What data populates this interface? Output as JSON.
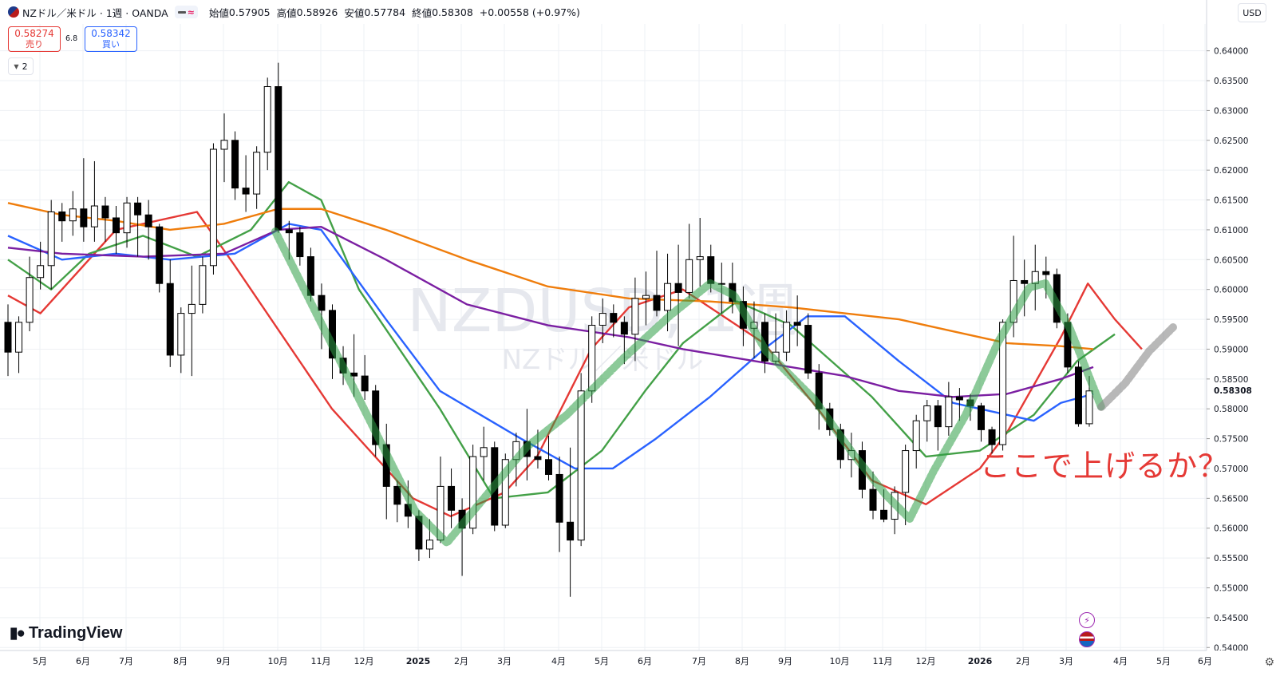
{
  "header": {
    "title": "NZドル／米ドル · 1週 · OANDA",
    "approx_symbol": "≈",
    "open_label": "始値",
    "open": "0.57905",
    "high_label": "高値",
    "high": "0.58926",
    "low_label": "安値",
    "low": "0.57784",
    "close_label": "終値",
    "close": "0.58308",
    "change": "+0.00558 (+0.97%)"
  },
  "trade": {
    "sell_price": "0.58274",
    "sell_label": "売り",
    "spread": "6.8",
    "buy_price": "0.58342",
    "buy_label": "買い"
  },
  "indicators_toggle": {
    "count": "2",
    "icon": "chevron-down-icon"
  },
  "currency_button": "USD",
  "watermark": {
    "symbol": "NZDUSD, 1週",
    "name": "NZドル／米ドル"
  },
  "logo": {
    "text": "TradingView",
    "icon": "tradingview-logo-icon"
  },
  "annotation": "ここで上げるか？",
  "last_price_label": "0.58308",
  "colors": {
    "up_candle": "#ffffff",
    "down_candle": "#000000",
    "sma_red": "#e53935",
    "sma_green": "#43a047",
    "sma_blue": "#2962ff",
    "sma_purple": "#7b1fa2",
    "sma_orange": "#ef7d0c",
    "annotation": "#e53935",
    "grid": "#eef0f4"
  },
  "chart_data": {
    "type": "candlestick",
    "ylim": [
      0.5395,
      0.6445
    ],
    "y_ticks": [
      "0.54000",
      "0.54500",
      "0.55000",
      "0.55500",
      "0.56000",
      "0.56500",
      "0.57000",
      "0.57500",
      "0.58000",
      "0.58500",
      "0.59000",
      "0.59500",
      "0.60000",
      "0.60500",
      "0.61000",
      "0.61500",
      "0.62000",
      "0.62500",
      "0.63000",
      "0.63500",
      "0.64000"
    ],
    "x_ticks": [
      "5月",
      "6月",
      "7月",
      "8月",
      "9月",
      "10月",
      "11月",
      "12月",
      "2025",
      "2月",
      "3月",
      "4月",
      "5月",
      "6月",
      "7月",
      "8月",
      "9月",
      "10月",
      "11月",
      "12月",
      "2026",
      "2月",
      "3月",
      "4月",
      "5月",
      "6月"
    ],
    "candles": [
      [
        0.5945,
        0.5895,
        0.5975,
        0.5855
      ],
      [
        0.5895,
        0.5945,
        0.5955,
        0.586
      ],
      [
        0.5945,
        0.602,
        0.6055,
        0.593
      ],
      [
        0.602,
        0.604,
        0.608,
        0.6
      ],
      [
        0.604,
        0.613,
        0.615,
        0.6
      ],
      [
        0.613,
        0.6115,
        0.6145,
        0.608
      ],
      [
        0.6115,
        0.6135,
        0.6165,
        0.609
      ],
      [
        0.6135,
        0.6105,
        0.622,
        0.608
      ],
      [
        0.6105,
        0.614,
        0.6215,
        0.608
      ],
      [
        0.614,
        0.612,
        0.6155,
        0.608
      ],
      [
        0.612,
        0.6095,
        0.614,
        0.606
      ],
      [
        0.6095,
        0.6145,
        0.6155,
        0.607
      ],
      [
        0.6145,
        0.6125,
        0.6155,
        0.6055
      ],
      [
        0.6125,
        0.6105,
        0.615,
        0.605
      ],
      [
        0.6105,
        0.601,
        0.611,
        0.5995
      ],
      [
        0.601,
        0.589,
        0.605,
        0.587
      ],
      [
        0.589,
        0.596,
        0.597,
        0.586
      ],
      [
        0.596,
        0.5975,
        0.604,
        0.5855
      ],
      [
        0.5975,
        0.604,
        0.6055,
        0.596
      ],
      [
        0.604,
        0.6235,
        0.6245,
        0.6025
      ],
      [
        0.6235,
        0.625,
        0.6295,
        0.618
      ],
      [
        0.625,
        0.617,
        0.6265,
        0.615
      ],
      [
        0.617,
        0.616,
        0.6225,
        0.613
      ],
      [
        0.616,
        0.623,
        0.624,
        0.6135
      ],
      [
        0.623,
        0.634,
        0.6355,
        0.62
      ],
      [
        0.634,
        0.61,
        0.638,
        0.6095
      ],
      [
        0.61,
        0.6095,
        0.6115,
        0.605
      ],
      [
        0.6095,
        0.6055,
        0.6105,
        0.604
      ],
      [
        0.6055,
        0.599,
        0.607,
        0.598
      ],
      [
        0.599,
        0.5965,
        0.601,
        0.59
      ],
      [
        0.5965,
        0.5885,
        0.5975,
        0.585
      ],
      [
        0.5885,
        0.586,
        0.5905,
        0.584
      ],
      [
        0.586,
        0.5855,
        0.5925,
        0.582
      ],
      [
        0.5855,
        0.583,
        0.589,
        0.5815
      ],
      [
        0.583,
        0.574,
        0.584,
        0.572
      ],
      [
        0.574,
        0.567,
        0.5775,
        0.5615
      ],
      [
        0.567,
        0.564,
        0.568,
        0.561
      ],
      [
        0.564,
        0.562,
        0.568,
        0.56
      ],
      [
        0.562,
        0.5565,
        0.563,
        0.5545
      ],
      [
        0.5565,
        0.558,
        0.5615,
        0.555
      ],
      [
        0.558,
        0.567,
        0.572,
        0.5575
      ],
      [
        0.567,
        0.563,
        0.57,
        0.56
      ],
      [
        0.563,
        0.56,
        0.565,
        0.552
      ],
      [
        0.56,
        0.572,
        0.574,
        0.559
      ],
      [
        0.572,
        0.5735,
        0.577,
        0.568
      ],
      [
        0.5735,
        0.5605,
        0.5745,
        0.5595
      ],
      [
        0.5605,
        0.5715,
        0.5725,
        0.56
      ],
      [
        0.5715,
        0.5745,
        0.576,
        0.567
      ],
      [
        0.5745,
        0.572,
        0.58,
        0.568
      ],
      [
        0.572,
        0.5715,
        0.5765,
        0.57
      ],
      [
        0.5715,
        0.569,
        0.5755,
        0.568
      ],
      [
        0.569,
        0.561,
        0.572,
        0.556
      ],
      [
        0.561,
        0.558,
        0.5735,
        0.5485
      ],
      [
        0.558,
        0.583,
        0.586,
        0.557
      ],
      [
        0.583,
        0.594,
        0.5955,
        0.581
      ],
      [
        0.594,
        0.596,
        0.5985,
        0.591
      ],
      [
        0.596,
        0.5945,
        0.5975,
        0.592
      ],
      [
        0.5945,
        0.5925,
        0.5955,
        0.5875
      ],
      [
        0.5925,
        0.5985,
        0.602,
        0.588
      ],
      [
        0.5985,
        0.599,
        0.603,
        0.594
      ],
      [
        0.599,
        0.5965,
        0.6065,
        0.5955
      ],
      [
        0.5965,
        0.601,
        0.606,
        0.593
      ],
      [
        0.601,
        0.5995,
        0.6075,
        0.5905
      ],
      [
        0.5995,
        0.605,
        0.611,
        0.5985
      ],
      [
        0.605,
        0.6055,
        0.612,
        0.6005
      ],
      [
        0.6055,
        0.601,
        0.6075,
        0.5995
      ],
      [
        0.601,
        0.601,
        0.6045,
        0.596
      ],
      [
        0.601,
        0.598,
        0.6045,
        0.596
      ],
      [
        0.598,
        0.5935,
        0.6005,
        0.5905
      ],
      [
        0.5935,
        0.5945,
        0.598,
        0.5885
      ],
      [
        0.5945,
        0.588,
        0.596,
        0.586
      ],
      [
        0.588,
        0.5895,
        0.596,
        0.5875
      ],
      [
        0.5895,
        0.5945,
        0.5965,
        0.588
      ],
      [
        0.5945,
        0.594,
        0.599,
        0.5905
      ],
      [
        0.594,
        0.586,
        0.596,
        0.585
      ],
      [
        0.586,
        0.58,
        0.5875,
        0.5765
      ],
      [
        0.58,
        0.5765,
        0.581,
        0.5755
      ],
      [
        0.5765,
        0.5715,
        0.5775,
        0.57
      ],
      [
        0.5715,
        0.573,
        0.576,
        0.5685
      ],
      [
        0.573,
        0.5665,
        0.5745,
        0.565
      ],
      [
        0.5665,
        0.563,
        0.5695,
        0.5615
      ],
      [
        0.563,
        0.5615,
        0.5665,
        0.561
      ],
      [
        0.5615,
        0.566,
        0.567,
        0.559
      ],
      [
        0.566,
        0.573,
        0.574,
        0.5605
      ],
      [
        0.573,
        0.578,
        0.579,
        0.57
      ],
      [
        0.578,
        0.5805,
        0.5815,
        0.5745
      ],
      [
        0.5805,
        0.577,
        0.5815,
        0.573
      ],
      [
        0.577,
        0.582,
        0.5845,
        0.5755
      ],
      [
        0.582,
        0.5815,
        0.5835,
        0.578
      ],
      [
        0.5815,
        0.5805,
        0.5825,
        0.578
      ],
      [
        0.5805,
        0.5765,
        0.581,
        0.5745
      ],
      [
        0.5765,
        0.574,
        0.577,
        0.5725
      ],
      [
        0.574,
        0.5945,
        0.595,
        0.573
      ],
      [
        0.5945,
        0.6015,
        0.609,
        0.592
      ],
      [
        0.6015,
        0.601,
        0.605,
        0.5955
      ],
      [
        0.601,
        0.603,
        0.6075,
        0.5965
      ],
      [
        0.603,
        0.6025,
        0.6055,
        0.5985
      ],
      [
        0.6025,
        0.5945,
        0.6035,
        0.5935
      ],
      [
        0.5945,
        0.587,
        0.596,
        0.586
      ],
      [
        0.587,
        0.5775,
        0.588,
        0.577
      ],
      [
        0.5775,
        0.583,
        0.5855,
        0.577
      ]
    ],
    "moving_averages": [
      {
        "color": "#e53935",
        "values": [
          [
            0,
            0.599
          ],
          [
            6,
            0.596
          ],
          [
            12,
            0.602
          ],
          [
            20,
            0.61
          ],
          [
            35,
            0.613
          ],
          [
            42,
            0.604
          ],
          [
            60,
            0.58
          ],
          [
            75,
            0.565
          ],
          [
            82,
            0.562
          ],
          [
            92,
            0.566
          ],
          [
            98,
            0.572
          ],
          [
            108,
            0.59
          ],
          [
            115,
            0.597
          ],
          [
            125,
            0.6
          ],
          [
            130,
            0.597
          ],
          [
            140,
            0.591
          ],
          [
            150,
            0.58
          ],
          [
            160,
            0.568
          ],
          [
            170,
            0.564
          ],
          [
            180,
            0.57
          ],
          [
            185,
            0.576
          ],
          [
            195,
            0.592
          ],
          [
            200,
            0.601
          ],
          [
            205,
            0.595
          ],
          [
            210,
            0.59
          ]
        ]
      },
      {
        "color": "#43a047",
        "values": [
          [
            0,
            0.605
          ],
          [
            8,
            0.6
          ],
          [
            15,
            0.606
          ],
          [
            25,
            0.609
          ],
          [
            35,
            0.6055
          ],
          [
            45,
            0.61
          ],
          [
            52,
            0.618
          ],
          [
            58,
            0.615
          ],
          [
            65,
            0.6
          ],
          [
            80,
            0.58
          ],
          [
            90,
            0.565
          ],
          [
            100,
            0.566
          ],
          [
            110,
            0.573
          ],
          [
            118,
            0.583
          ],
          [
            125,
            0.591
          ],
          [
            135,
            0.598
          ],
          [
            145,
            0.594
          ],
          [
            160,
            0.582
          ],
          [
            170,
            0.572
          ],
          [
            180,
            0.573
          ],
          [
            190,
            0.579
          ],
          [
            198,
            0.588
          ],
          [
            205,
            0.5925
          ]
        ]
      },
      {
        "color": "#2962ff",
        "values": [
          [
            0,
            0.609
          ],
          [
            10,
            0.605
          ],
          [
            20,
            0.606
          ],
          [
            30,
            0.605
          ],
          [
            42,
            0.606
          ],
          [
            52,
            0.611
          ],
          [
            58,
            0.61
          ],
          [
            70,
            0.595
          ],
          [
            80,
            0.583
          ],
          [
            95,
            0.575
          ],
          [
            105,
            0.57
          ],
          [
            112,
            0.57
          ],
          [
            120,
            0.575
          ],
          [
            130,
            0.582
          ],
          [
            140,
            0.59
          ],
          [
            148,
            0.5955
          ],
          [
            155,
            0.5955
          ],
          [
            165,
            0.588
          ],
          [
            175,
            0.581
          ],
          [
            185,
            0.579
          ],
          [
            190,
            0.578
          ],
          [
            195,
            0.581
          ],
          [
            201,
            0.5825
          ]
        ]
      },
      {
        "color": "#7b1fa2",
        "values": [
          [
            0,
            0.607
          ],
          [
            10,
            0.606
          ],
          [
            25,
            0.6055
          ],
          [
            40,
            0.606
          ],
          [
            50,
            0.61
          ],
          [
            58,
            0.6105
          ],
          [
            70,
            0.605
          ],
          [
            85,
            0.5975
          ],
          [
            100,
            0.594
          ],
          [
            115,
            0.592
          ],
          [
            125,
            0.59
          ],
          [
            135,
            0.5885
          ],
          [
            145,
            0.587
          ],
          [
            155,
            0.5855
          ],
          [
            165,
            0.583
          ],
          [
            175,
            0.582
          ],
          [
            185,
            0.5825
          ],
          [
            195,
            0.585
          ],
          [
            201,
            0.587
          ]
        ]
      },
      {
        "color": "#ef7d0c",
        "values": [
          [
            0,
            0.6145
          ],
          [
            10,
            0.6125
          ],
          [
            20,
            0.6115
          ],
          [
            30,
            0.61
          ],
          [
            40,
            0.611
          ],
          [
            50,
            0.6135
          ],
          [
            58,
            0.6135
          ],
          [
            70,
            0.61
          ],
          [
            85,
            0.605
          ],
          [
            100,
            0.6005
          ],
          [
            115,
            0.5985
          ],
          [
            130,
            0.598
          ],
          [
            145,
            0.597
          ],
          [
            155,
            0.596
          ],
          [
            165,
            0.595
          ],
          [
            175,
            0.593
          ],
          [
            185,
            0.591
          ],
          [
            195,
            0.5905
          ],
          [
            201,
            0.59
          ]
        ]
      }
    ]
  }
}
